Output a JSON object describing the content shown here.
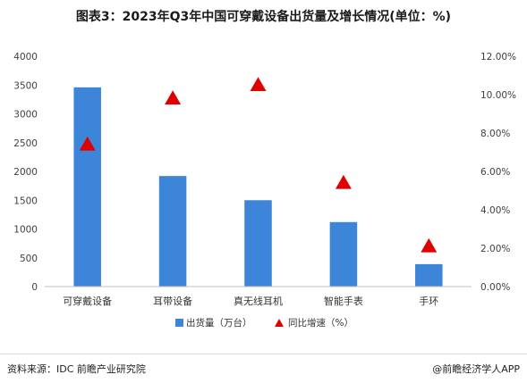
{
  "title": "图表3：2023年Q3年中国可穿戴设备出货量及增长情况(单位：%)",
  "chart_data": {
    "type": "bar",
    "categories": [
      "可穿戴设备",
      "耳带设备",
      "真无线耳机",
      "智能手表",
      "手环"
    ],
    "series": [
      {
        "name": "出货量（万台）",
        "kind": "bar",
        "axis": "left",
        "color": "#3d85d8",
        "values": [
          3460,
          1920,
          1500,
          1120,
          390
        ]
      },
      {
        "name": "同比增速（%）",
        "kind": "marker",
        "marker": "triangle",
        "axis": "right",
        "color": "#e00000",
        "values": [
          7.4,
          9.8,
          10.5,
          5.4,
          2.1
        ]
      }
    ],
    "y_left": {
      "range": [
        0,
        4000
      ],
      "ticks": [
        "0",
        "500",
        "1000",
        "1500",
        "2000",
        "2500",
        "3000",
        "3500",
        "4000"
      ]
    },
    "y_right": {
      "range": [
        0,
        12
      ],
      "ticks": [
        "0.00%",
        "2.00%",
        "4.00%",
        "6.00%",
        "8.00%",
        "10.00%",
        "12.00%"
      ]
    },
    "grid": false,
    "legend": "bottom"
  },
  "footer": {
    "source": "资料来源：IDC 前瞻产业研究院",
    "credit": "@前瞻经济学人APP"
  }
}
